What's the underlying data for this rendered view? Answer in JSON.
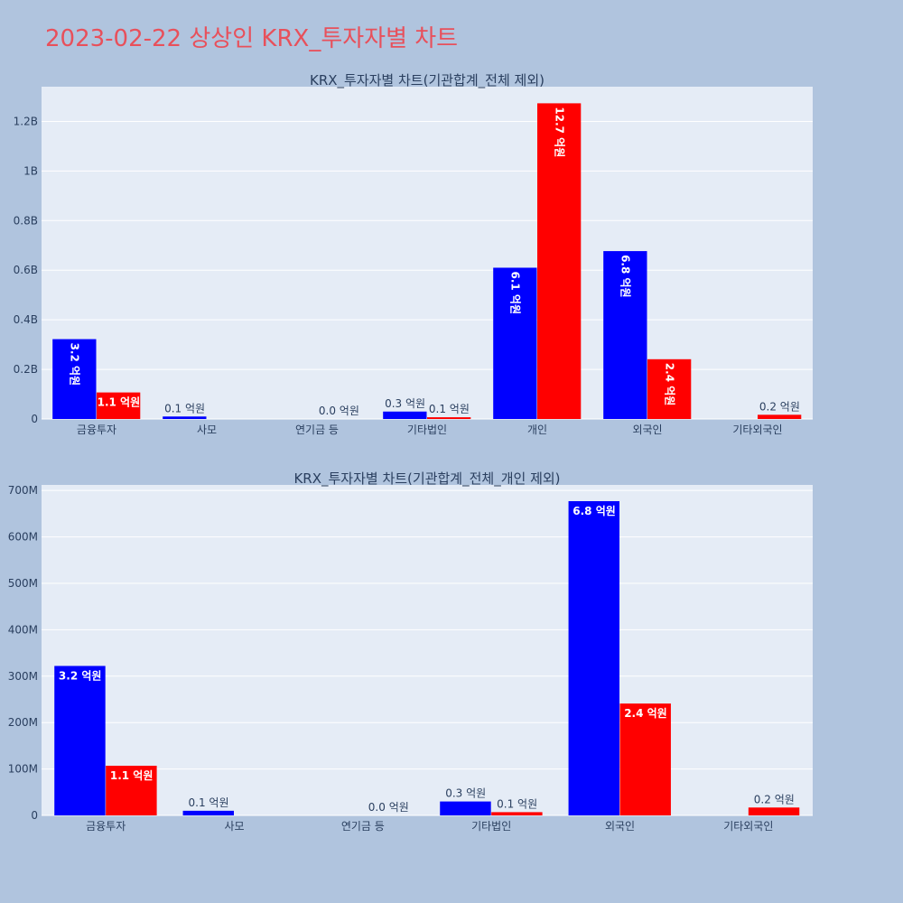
{
  "page": {
    "title": "2023-02-22 상상인 KRX_투자자별 차트"
  },
  "chart_data": [
    {
      "type": "bar",
      "title": "KRX_투자자별 차트(기관합계_전체 제외)",
      "categories": [
        "금융투자",
        "사모",
        "연기금 등",
        "기타법인",
        "개인",
        "외국인",
        "기타외국인"
      ],
      "ylim": [
        0,
        1340000000
      ],
      "yticks": [
        0,
        200000000,
        400000000,
        600000000,
        800000000,
        1000000000,
        1200000000
      ],
      "yticklabels": [
        "0",
        "0.2B",
        "0.4B",
        "0.6B",
        "0.8B",
        "1B",
        "1.2B"
      ],
      "grid": true,
      "series": [
        {
          "color": "#0000ff",
          "values": [
            322000000,
            10000000,
            0,
            30000000,
            610000000,
            677000000,
            0
          ],
          "labels": [
            "3.2 억원",
            "0.1 억원",
            "",
            "0.3 억원",
            "6.1 억원",
            "6.8 억원",
            ""
          ],
          "label_pos": [
            "in-vertical",
            "out",
            "none",
            "out",
            "in-vertical",
            "in-vertical",
            "none"
          ]
        },
        {
          "color": "#ff0000",
          "values": [
            107000000,
            0,
            0,
            7000000,
            1273000000,
            241000000,
            17000000
          ],
          "labels": [
            "1.1 억원",
            "",
            "0.0 억원",
            "0.1 억원",
            "12.7 억원",
            "2.4 억원",
            "0.2 억원"
          ],
          "label_pos": [
            "in",
            "none",
            "out",
            "out",
            "in-vertical",
            "in-vertical",
            "out"
          ]
        }
      ]
    },
    {
      "type": "bar",
      "title": "KRX_투자자별 차트(기관합계_전체_개인 제외)",
      "categories": [
        "금융투자",
        "사모",
        "연기금 등",
        "기타법인",
        "외국인",
        "기타외국인"
      ],
      "ylim": [
        0,
        712000000
      ],
      "yticks": [
        0,
        100000000,
        200000000,
        300000000,
        400000000,
        500000000,
        600000000,
        700000000
      ],
      "yticklabels": [
        "0",
        "100M",
        "200M",
        "300M",
        "400M",
        "500M",
        "600M",
        "700M"
      ],
      "grid": true,
      "series": [
        {
          "color": "#0000ff",
          "values": [
            322000000,
            10000000,
            0,
            30000000,
            677000000,
            0
          ],
          "labels": [
            "3.2 억원",
            "0.1 억원",
            "",
            "0.3 억원",
            "6.8 억원",
            ""
          ],
          "label_pos": [
            "in",
            "out",
            "none",
            "out",
            "in",
            "none"
          ]
        },
        {
          "color": "#ff0000",
          "values": [
            107000000,
            0,
            0,
            7000000,
            241000000,
            17000000
          ],
          "labels": [
            "1.1 억원",
            "",
            "0.0 억원",
            "0.1 억원",
            "2.4 억원",
            "0.2 억원"
          ],
          "label_pos": [
            "in",
            "none",
            "out",
            "out",
            "in",
            "out"
          ]
        }
      ]
    }
  ]
}
